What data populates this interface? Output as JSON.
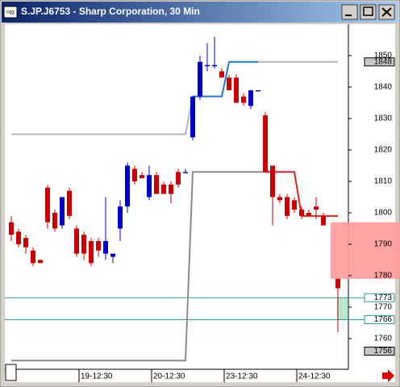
{
  "window": {
    "title": "S.JP.J6753 - Sharp Corporation, 30 Min"
  },
  "chart_data": {
    "type": "candlestick",
    "categories": [
      null,
      null,
      null,
      null,
      null,
      null,
      null,
      null,
      null,
      "19-12:30",
      null,
      null,
      null,
      null,
      null,
      null,
      null,
      null,
      null,
      "20-12:30",
      null,
      null,
      null,
      null,
      null,
      null,
      null,
      null,
      null,
      "23-12:30",
      null,
      null,
      null,
      null,
      null,
      null,
      null,
      null,
      null,
      "24-12:30",
      null,
      null,
      null,
      null,
      null,
      null
    ],
    "open": [
      1797,
      1794,
      1792,
      1788,
      1785,
      1808,
      1800,
      1796,
      1807,
      1795,
      1793,
      1791,
      1791,
      1787,
      1786,
      1795,
      1802,
      1814,
      1812,
      1805,
      1812,
      1809,
      1809,
      1813,
      1813,
      1824,
      1837,
      1847,
      1847,
      1845,
      1843,
      1843,
      1837,
      1834,
      1839,
      1831,
      1815,
      1805,
      1805,
      1804,
      1801,
      1800,
      1802,
      1799,
      null,
      1779
    ],
    "high": [
      1799,
      1795,
      1793,
      1789,
      1785,
      1809,
      1801,
      1805,
      1808,
      1796,
      1794,
      1792,
      1792,
      1805,
      1786,
      1804,
      1816,
      1815,
      1813,
      1815,
      1813,
      1810,
      1810,
      1814,
      1814,
      1837,
      1850,
      1854,
      1856,
      1846,
      1844,
      1844,
      1838,
      1839,
      1839,
      1832,
      1815,
      1806,
      1806,
      1805,
      1802,
      1801,
      1805,
      1800,
      null,
      1779
    ],
    "low": [
      1791,
      1789,
      1787,
      1783,
      1784,
      1795,
      1794,
      1795,
      1798,
      1786,
      1785,
      1783,
      1786,
      1785,
      1784,
      1791,
      1800,
      1809,
      1811,
      1804,
      1806,
      1806,
      1803,
      1808,
      1813,
      1823,
      1836,
      1845,
      1846,
      1843,
      1839,
      1835,
      1834,
      1833,
      1839,
      1813,
      1796,
      1803,
      1798,
      1800,
      1798,
      1799,
      1798,
      1796,
      null,
      1762
    ],
    "close": [
      1793,
      1790,
      1789,
      1784,
      1784,
      1797,
      1795,
      1805,
      1799,
      1787,
      1787,
      1784,
      1788,
      1791,
      1787,
      1802,
      1815,
      1810,
      1811,
      1812,
      1806,
      1806,
      1806,
      1809,
      1813,
      1837,
      1848,
      1847,
      1847,
      1843,
      1839,
      1835,
      1835,
      1839,
      1839,
      1813,
      1805,
      1804,
      1799,
      1801,
      1799,
      1799,
      1801,
      1796,
      null,
      1776
    ],
    "up_color": "#0000cc",
    "down_color": "#cc0000",
    "ylim": [
      1751,
      1860
    ],
    "yticks": [
      1760,
      1770,
      1780,
      1790,
      1800,
      1810,
      1820,
      1830,
      1840,
      1850
    ],
    "lines": [
      {
        "color": "#b4b4b4",
        "x": [
          0,
          24,
          25
        ],
        "values": [
          1825,
          1825,
          1837
        ]
      },
      {
        "color": "#b4b4b4",
        "x": [
          34,
          45
        ],
        "values": [
          1848,
          1848
        ]
      },
      {
        "color": "#1e78dc",
        "x": [
          25,
          29,
          30,
          34
        ],
        "values": [
          1837,
          1837,
          1848,
          1848
        ]
      },
      {
        "color": "#8c8c8c",
        "x": [
          0,
          24,
          25,
          36
        ],
        "values": [
          1753,
          1753,
          1813,
          1813
        ]
      },
      {
        "color": "#e61e1e",
        "x": [
          35,
          39,
          40,
          45
        ],
        "values": [
          1813,
          1813,
          1799,
          1799
        ]
      }
    ],
    "levels": [
      1773,
      1766
    ],
    "zones": [
      {
        "from": 1779,
        "to": 1797,
        "color": "#ff9a9a"
      },
      {
        "from": 1766,
        "to": 1773,
        "color": "#b4e6c8"
      }
    ],
    "price_labels": [
      1848,
      1773,
      1766,
      1756
    ]
  }
}
